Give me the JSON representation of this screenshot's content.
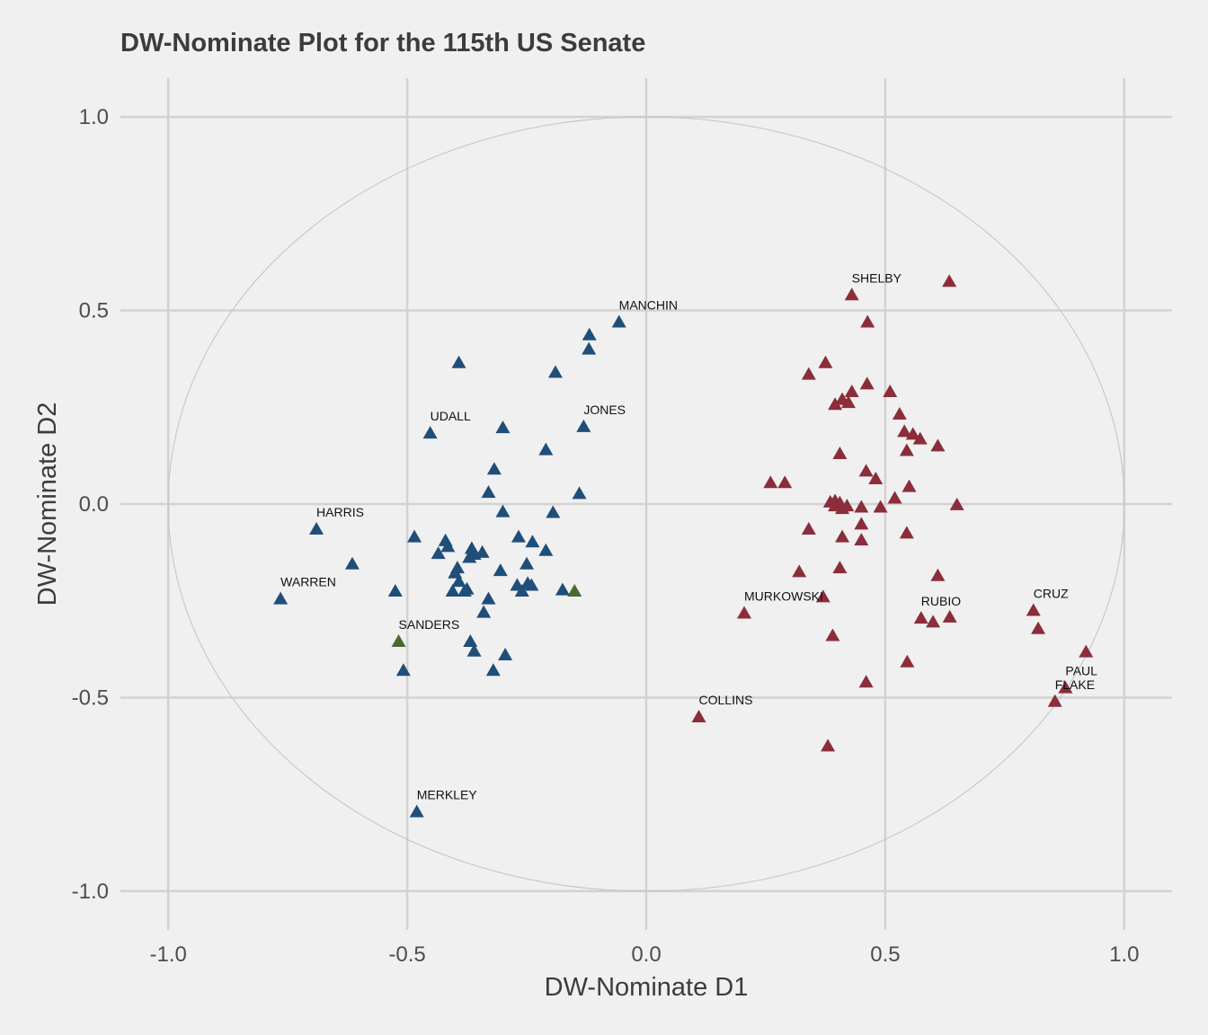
{
  "chart_data": {
    "type": "scatter",
    "title": "DW-Nominate Plot for the 115th US Senate",
    "xlabel": "DW-Nominate D1",
    "ylabel": "DW-Nominate D2",
    "xlim": [
      -1.1,
      1.1
    ],
    "ylim": [
      -1.1,
      1.1
    ],
    "xticks": [
      -1.0,
      -0.5,
      0.0,
      0.5,
      1.0
    ],
    "yticks": [
      -1.0,
      -0.5,
      0.0,
      0.5,
      1.0
    ],
    "xtick_labels": [
      "-1.0",
      "-0.5",
      "0.0",
      "0.5",
      "1.0"
    ],
    "ytick_labels": [
      "-1.0",
      "-0.5",
      "0.0",
      "0.5",
      "1.0"
    ],
    "grid": true,
    "legend": "none",
    "reference_circle": {
      "center": [
        0,
        0
      ],
      "radius": 1.0,
      "color": "#c4c4c4"
    },
    "series": [
      {
        "color": "#1f4e79",
        "marker": "triangle",
        "points": [
          [
            -0.057,
            0.47
          ],
          [
            -0.119,
            0.437
          ],
          [
            -0.12,
            0.4
          ],
          [
            -0.392,
            0.365
          ],
          [
            -0.19,
            0.34
          ],
          [
            -0.3,
            0.197
          ],
          [
            -0.452,
            0.183
          ],
          [
            -0.131,
            0.2
          ],
          [
            -0.21,
            0.14
          ],
          [
            -0.318,
            0.09
          ],
          [
            -0.33,
            0.03
          ],
          [
            -0.14,
            0.027
          ],
          [
            -0.3,
            -0.02
          ],
          [
            -0.195,
            -0.022
          ],
          [
            -0.485,
            -0.085
          ],
          [
            -0.42,
            -0.095
          ],
          [
            -0.267,
            -0.085
          ],
          [
            -0.238,
            -0.098
          ],
          [
            -0.415,
            -0.11
          ],
          [
            -0.21,
            -0.12
          ],
          [
            -0.435,
            -0.128
          ],
          [
            -0.365,
            -0.115
          ],
          [
            -0.36,
            -0.13
          ],
          [
            -0.343,
            -0.125
          ],
          [
            -0.37,
            -0.138
          ],
          [
            -0.395,
            -0.165
          ],
          [
            -0.4,
            -0.178
          ],
          [
            -0.305,
            -0.172
          ],
          [
            -0.25,
            -0.155
          ],
          [
            -0.392,
            -0.2
          ],
          [
            -0.27,
            -0.21
          ],
          [
            -0.248,
            -0.205
          ],
          [
            -0.24,
            -0.21
          ],
          [
            -0.375,
            -0.22
          ],
          [
            -0.38,
            -0.225
          ],
          [
            -0.405,
            -0.225
          ],
          [
            -0.175,
            -0.222
          ],
          [
            -0.26,
            -0.225
          ],
          [
            -0.33,
            -0.245
          ],
          [
            -0.34,
            -0.28
          ],
          [
            -0.368,
            -0.355
          ],
          [
            -0.36,
            -0.38
          ],
          [
            -0.295,
            -0.39
          ],
          [
            -0.32,
            -0.43
          ],
          [
            -0.508,
            -0.43
          ],
          [
            -0.525,
            -0.225
          ],
          [
            -0.615,
            -0.155
          ],
          [
            -0.69,
            -0.065
          ],
          [
            -0.765,
            -0.245
          ],
          [
            -0.48,
            -0.795
          ]
        ]
      },
      {
        "color": "#4a6b30",
        "marker": "triangle",
        "points": [
          [
            -0.15,
            -0.225
          ],
          [
            -0.518,
            -0.355
          ]
        ]
      },
      {
        "color": "#8b2d3a",
        "marker": "triangle",
        "points": [
          [
            0.634,
            0.575
          ],
          [
            0.43,
            0.54
          ],
          [
            0.463,
            0.47
          ],
          [
            0.375,
            0.365
          ],
          [
            0.34,
            0.335
          ],
          [
            0.462,
            0.31
          ],
          [
            0.51,
            0.29
          ],
          [
            0.43,
            0.29
          ],
          [
            0.41,
            0.27
          ],
          [
            0.423,
            0.262
          ],
          [
            0.395,
            0.257
          ],
          [
            0.53,
            0.232
          ],
          [
            0.54,
            0.187
          ],
          [
            0.558,
            0.18
          ],
          [
            0.573,
            0.168
          ],
          [
            0.61,
            0.15
          ],
          [
            0.545,
            0.138
          ],
          [
            0.405,
            0.13
          ],
          [
            0.46,
            0.085
          ],
          [
            0.48,
            0.065
          ],
          [
            0.26,
            0.055
          ],
          [
            0.29,
            0.055
          ],
          [
            0.55,
            0.045
          ],
          [
            0.52,
            0.015
          ],
          [
            0.385,
            0.005
          ],
          [
            0.395,
            0.008
          ],
          [
            0.405,
            0.003
          ],
          [
            0.65,
            -0.002
          ],
          [
            0.395,
            -0.005
          ],
          [
            0.42,
            -0.005
          ],
          [
            0.45,
            -0.008
          ],
          [
            0.49,
            -0.008
          ],
          [
            0.41,
            -0.012
          ],
          [
            0.45,
            -0.052
          ],
          [
            0.34,
            -0.065
          ],
          [
            0.545,
            -0.075
          ],
          [
            0.41,
            -0.085
          ],
          [
            0.45,
            -0.093
          ],
          [
            0.405,
            -0.165
          ],
          [
            0.32,
            -0.175
          ],
          [
            0.61,
            -0.185
          ],
          [
            0.37,
            -0.24
          ],
          [
            0.205,
            -0.282
          ],
          [
            0.575,
            -0.295
          ],
          [
            0.635,
            -0.292
          ],
          [
            0.6,
            -0.305
          ],
          [
            0.39,
            -0.34
          ],
          [
            0.81,
            -0.275
          ],
          [
            0.82,
            -0.322
          ],
          [
            0.92,
            -0.382
          ],
          [
            0.546,
            -0.408
          ],
          [
            0.46,
            -0.46
          ],
          [
            0.877,
            -0.475
          ],
          [
            0.855,
            -0.51
          ],
          [
            0.11,
            -0.55
          ],
          [
            0.38,
            -0.625
          ]
        ]
      }
    ],
    "labels": [
      {
        "text": "MANCHIN",
        "x": -0.057,
        "y": 0.47
      },
      {
        "text": "SHELBY",
        "x": 0.43,
        "y": 0.54
      },
      {
        "text": "UDALL",
        "x": -0.452,
        "y": 0.183
      },
      {
        "text": "JONES",
        "x": -0.131,
        "y": 0.2
      },
      {
        "text": "HARRIS",
        "x": -0.69,
        "y": -0.065
      },
      {
        "text": "WARREN",
        "x": -0.765,
        "y": -0.245
      },
      {
        "text": "SANDERS",
        "x": -0.518,
        "y": -0.355
      },
      {
        "text": "MURKOWSKI",
        "x": 0.205,
        "y": -0.282
      },
      {
        "text": "RUBIO",
        "x": 0.575,
        "y": -0.295
      },
      {
        "text": "CRUZ",
        "x": 0.81,
        "y": -0.275
      },
      {
        "text": "PAUL",
        "x": 0.877,
        "y": -0.475
      },
      {
        "text": "FLAKE",
        "x": 0.855,
        "y": -0.51
      },
      {
        "text": "COLLINS",
        "x": 0.11,
        "y": -0.55
      },
      {
        "text": "MERKLEY",
        "x": -0.48,
        "y": -0.795
      }
    ]
  }
}
